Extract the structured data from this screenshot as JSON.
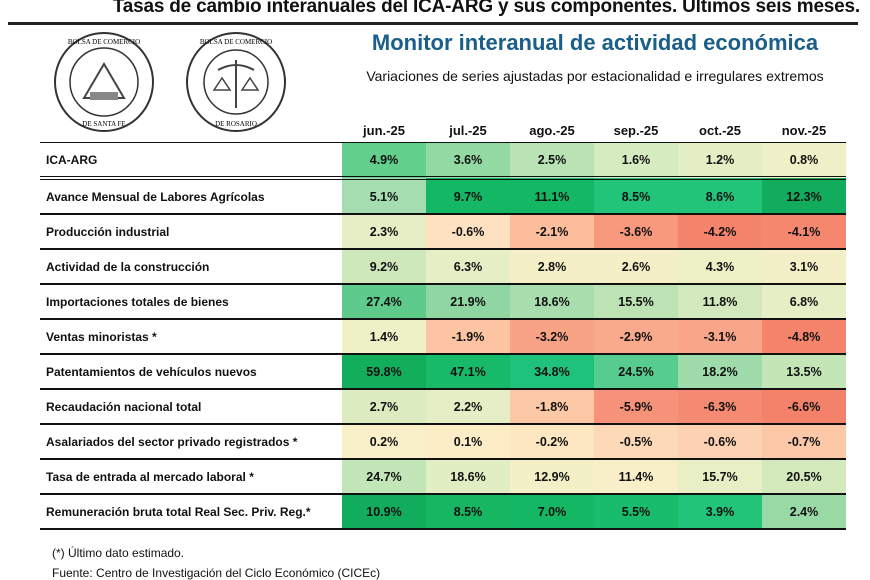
{
  "title": "Tasas de cambio interanuales del ICA-ARG y sus componentes. Ultimos seis meses.",
  "logos": [
    {
      "text": "BOLSA DE COMERCIO DE SANTA FE"
    },
    {
      "text": "BOLSA DE COMERCIO DE ROSARIO"
    }
  ],
  "subtitle": "Monitor interanual de actividad económica",
  "description": "Variaciones de series ajustadas por estacionalidad e irregulares extremos",
  "footnote": "(*) Último dato estimado.",
  "source": "Fuente: Centro de Investigación del Ciclo Económico (CICEc)",
  "chart_data": {
    "type": "heatmap",
    "title": "Monitor interanual de actividad económica",
    "columns": [
      "jun.-25",
      "jul.-25",
      "ago.-25",
      "sep.-25",
      "oct.-25",
      "nov.-25"
    ],
    "color_scale": {
      "low": "#f4806a",
      "mid": "#fdf0c8",
      "high": "#10b05c"
    },
    "rows": [
      {
        "label": "ICA-ARG",
        "values": [
          "4.9%",
          "3.6%",
          "2.5%",
          "1.6%",
          "1.2%",
          "0.8%"
        ],
        "colors": [
          "#62cf8c",
          "#92d9a4",
          "#b9e3b5",
          "#d7ebc0",
          "#e4eec4",
          "#f0f0c8"
        ]
      },
      {
        "label": "Avance Mensual de Labores Agrícolas",
        "values": [
          "5.1%",
          "9.7%",
          "11.1%",
          "8.5%",
          "8.6%",
          "12.3%"
        ],
        "colors": [
          "#a6ddb0",
          "#14b864",
          "#14b864",
          "#22c47a",
          "#22c47a",
          "#12ad5c"
        ]
      },
      {
        "label": "Producción industrial",
        "values": [
          "2.3%",
          "-0.6%",
          "-2.1%",
          "-3.6%",
          "-4.2%",
          "-4.1%"
        ],
        "colors": [
          "#e7eec6",
          "#fde1c0",
          "#fbbd9c",
          "#f8987c",
          "#f4846c",
          "#f5876e"
        ]
      },
      {
        "label": "Actividad de la construcción",
        "values": [
          "9.2%",
          "6.3%",
          "2.8%",
          "2.6%",
          "4.3%",
          "3.1%"
        ],
        "colors": [
          "#cfe8bb",
          "#e6eec5",
          "#f5efc8",
          "#f5efc8",
          "#eef0c6",
          "#f3efc7"
        ]
      },
      {
        "label": "Importaciones totales de bienes",
        "values": [
          "27.4%",
          "21.9%",
          "18.6%",
          "15.5%",
          "11.8%",
          "6.8%"
        ],
        "colors": [
          "#5ecb8c",
          "#8fd6a2",
          "#a8ddae",
          "#bde3b4",
          "#d3e9bd",
          "#e6eec5"
        ]
      },
      {
        "label": "Ventas minoristas *",
        "values": [
          "1.4%",
          "-1.9%",
          "-3.2%",
          "-2.9%",
          "-3.1%",
          "-4.8%"
        ],
        "colors": [
          "#eef0c6",
          "#fcc4a2",
          "#f9a386",
          "#faaa8c",
          "#f9a589",
          "#f5846c"
        ]
      },
      {
        "label": "Patentamientos de vehículos nuevos",
        "values": [
          "59.8%",
          "47.1%",
          "34.8%",
          "24.5%",
          "18.2%",
          "13.5%"
        ],
        "colors": [
          "#12ae5c",
          "#16ba68",
          "#1ec27a",
          "#56cd8e",
          "#a0dbab",
          "#c4e6b7"
        ]
      },
      {
        "label": "Recaudación nacional total",
        "values": [
          "2.7%",
          "2.2%",
          "-1.8%",
          "-5.9%",
          "-6.3%",
          "-6.6%"
        ],
        "colors": [
          "#dcebc0",
          "#e6eec5",
          "#fcc8a6",
          "#f6927a",
          "#f58a72",
          "#f4826b"
        ]
      },
      {
        "label": "Asalariados del sector privado registrados *",
        "values": [
          "0.2%",
          "0.1%",
          "-0.2%",
          "-0.5%",
          "-0.6%",
          "-0.7%"
        ],
        "colors": [
          "#f9efc8",
          "#fcedc6",
          "#fde6c2",
          "#fdd9b8",
          "#fcd2b2",
          "#fcc8a8"
        ]
      },
      {
        "label": "Tasa de entrada al mercado laboral *",
        "values": [
          "24.7%",
          "18.6%",
          "12.9%",
          "11.4%",
          "15.7%",
          "20.5%"
        ],
        "colors": [
          "#c3e6b8",
          "#e1edc3",
          "#f3efc7",
          "#f8efc8",
          "#e9efc5",
          "#d4eabd"
        ]
      },
      {
        "label": "Remuneración bruta total Real Sec. Priv. Reg.*",
        "values": [
          "10.9%",
          "8.5%",
          "7.0%",
          "5.5%",
          "3.9%",
          "2.4%"
        ],
        "colors": [
          "#12ad5c",
          "#16b662",
          "#14b864",
          "#18bc6c",
          "#22c47a",
          "#98d9a6"
        ]
      }
    ]
  }
}
